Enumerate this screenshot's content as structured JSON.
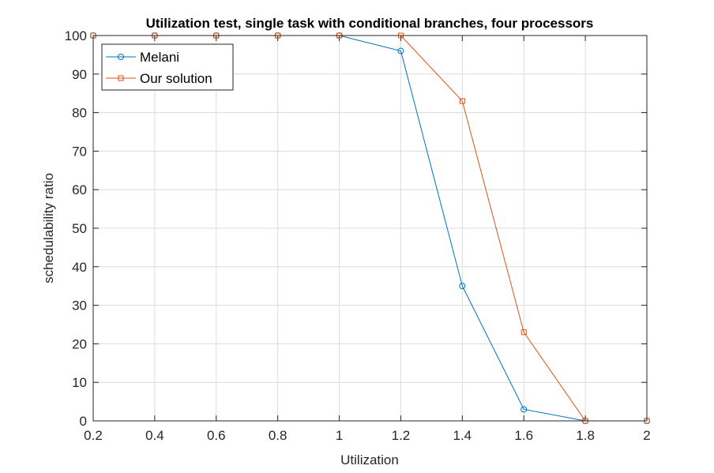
{
  "chart_data": {
    "type": "line",
    "title": "Utilization test, single task with conditional branches, four processors",
    "xlabel": "Utilization",
    "ylabel": "schedulability ratio",
    "xlim": [
      0.2,
      2
    ],
    "ylim": [
      0,
      100
    ],
    "xticks": [
      0.2,
      0.4,
      0.6,
      0.8,
      1,
      1.2,
      1.4,
      1.6,
      1.8,
      2
    ],
    "xtick_labels": [
      "0.2",
      "0.4",
      "0.6",
      "0.8",
      "1",
      "1.2",
      "1.4",
      "1.6",
      "1.8",
      "2"
    ],
    "yticks": [
      0,
      10,
      20,
      30,
      40,
      50,
      60,
      70,
      80,
      90,
      100
    ],
    "ytick_labels": [
      "0",
      "10",
      "20",
      "30",
      "40",
      "50",
      "60",
      "70",
      "80",
      "90",
      "100"
    ],
    "grid": true,
    "legend_position": "top-left",
    "x": [
      0.2,
      0.4,
      0.6,
      0.8,
      1.0,
      1.2,
      1.4,
      1.6,
      1.8,
      2.0
    ],
    "series": [
      {
        "name": "Melani",
        "marker": "circle",
        "color": "#0072BD",
        "values": [
          100,
          100,
          100,
          100,
          100,
          96,
          35,
          3,
          0,
          0
        ]
      },
      {
        "name": "Our solution",
        "marker": "square",
        "color": "#D95319",
        "values": [
          100,
          100,
          100,
          100,
          100,
          100,
          83,
          23,
          0,
          0
        ]
      }
    ]
  }
}
